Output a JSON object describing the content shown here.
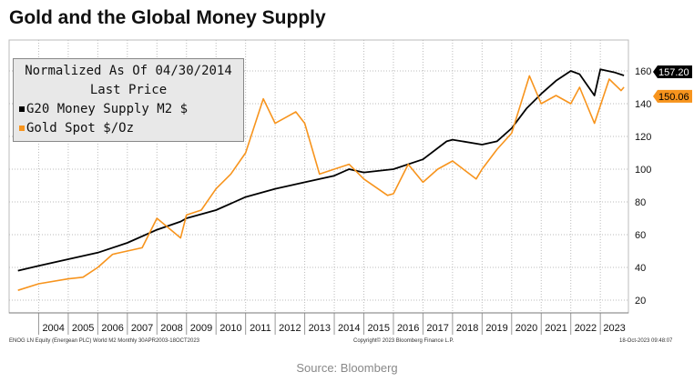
{
  "chart_data": {
    "type": "line",
    "title": "Gold and the Global Money Supply",
    "legend": {
      "line1": "Normalized As Of 04/30/2014",
      "line2": "Last Price",
      "placement": "top-left"
    },
    "ylim": [
      15,
      170
    ],
    "yticks": [
      20,
      40,
      60,
      80,
      100,
      120,
      140,
      160
    ],
    "xlim": [
      2003.0,
      2023.95
    ],
    "xtick_labels": [
      "2004",
      "2005",
      "2006",
      "2007",
      "2008",
      "2009",
      "2010",
      "2011",
      "2012",
      "2013",
      "2014",
      "2015",
      "2016",
      "2017",
      "2018",
      "2019",
      "2020",
      "2021",
      "2022",
      "2023"
    ],
    "grid": true,
    "series": [
      {
        "name": "G20 Money Supply M2 $",
        "color": "#000000",
        "last_label": "157.20",
        "x": [
          2003.3,
          2004,
          2005,
          2006,
          2007,
          2008,
          2008.8,
          2009,
          2010,
          2011,
          2012,
          2013,
          2014,
          2014.5,
          2015,
          2016,
          2017,
          2017.8,
          2018,
          2019,
          2019.5,
          2020,
          2020.5,
          2021,
          2021.5,
          2022,
          2022.3,
          2022.8,
          2023,
          2023.5,
          2023.8
        ],
        "y": [
          38,
          41,
          45,
          49,
          55,
          63,
          68,
          70,
          75,
          83,
          88,
          92,
          96,
          100,
          98,
          100,
          106,
          117,
          118,
          115,
          117,
          125,
          137,
          146,
          154,
          160,
          158,
          145,
          161,
          159,
          157.2
        ]
      },
      {
        "name": "Gold Spot $/Oz",
        "color": "#f7941d",
        "last_label": "150.06",
        "x": [
          2003.3,
          2004,
          2005,
          2005.5,
          2006,
          2006.5,
          2007,
          2007.5,
          2008,
          2008.8,
          2009,
          2009.5,
          2010,
          2010.5,
          2011,
          2011.6,
          2012,
          2012.7,
          2013,
          2013.5,
          2014,
          2014.5,
          2015,
          2015.8,
          2016,
          2016.5,
          2017,
          2017.5,
          2018,
          2018.8,
          2019,
          2019.5,
          2020,
          2020.6,
          2021,
          2021.5,
          2022,
          2022.3,
          2022.8,
          2023.3,
          2023.7,
          2023.8
        ],
        "y": [
          26,
          30,
          33,
          34,
          40,
          48,
          50,
          52,
          70,
          58,
          72,
          75,
          88,
          97,
          110,
          143,
          128,
          135,
          128,
          97,
          100,
          103,
          94,
          84,
          85,
          103,
          92,
          100,
          105,
          94,
          100,
          112,
          122,
          157,
          140,
          145,
          140,
          150,
          128,
          155,
          148,
          150.06
        ]
      }
    ]
  },
  "footer": {
    "left": "ENOG LN Equity (Energean PLC) World M2  Monthly 30APR2003-18OCT2023",
    "center": "Copyright© 2023 Bloomberg Finance L.P.",
    "right": "18-Oct-2023 09:48:07"
  },
  "source": "Source: Bloomberg"
}
